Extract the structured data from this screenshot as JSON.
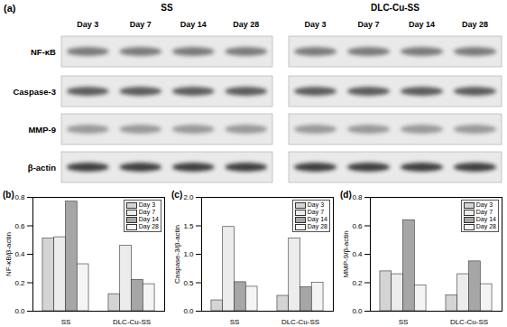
{
  "blot": {
    "panel": "(a)",
    "groups": [
      "SS",
      "DLC-Cu-SS"
    ],
    "days": [
      "Day 3",
      "Day 7",
      "Day 14",
      "Day 28"
    ],
    "rows": [
      "NF-κB",
      "Caspase-3",
      "MMP-9",
      "β-actin"
    ]
  },
  "chart_data": [
    {
      "type": "bar",
      "title": "(b)",
      "y_label": "NF-κB/β-actin",
      "categories": [
        "SS",
        "DLC-Cu-SS"
      ],
      "series": [
        {
          "name": "Day 3",
          "color": "#d4d4d4",
          "values": [
            0.51,
            0.12
          ]
        },
        {
          "name": "Day 7",
          "color": "#ececec",
          "values": [
            0.52,
            0.46
          ]
        },
        {
          "name": "Day 14",
          "color": "#a6a6a6",
          "values": [
            0.77,
            0.22
          ]
        },
        {
          "name": "Day 28",
          "color": "#f4f4f4",
          "values": [
            0.33,
            0.19
          ]
        }
      ],
      "ylim": [
        0,
        0.8
      ],
      "yticks": [
        {
          "value": 0,
          "label": "0.0"
        },
        0.2,
        0.4,
        0.6,
        0.8
      ],
      "legend": "top-right",
      "grid": false
    },
    {
      "type": "bar",
      "title": "(c)",
      "y_label": "Caspase-3/β-actin",
      "categories": [
        "SS",
        "DLC-Cu-SS"
      ],
      "series": [
        {
          "name": "Day 3",
          "color": "#d4d4d4",
          "values": [
            0.19,
            0.27
          ]
        },
        {
          "name": "Day 7",
          "color": "#ececec",
          "values": [
            1.48,
            1.28
          ]
        },
        {
          "name": "Day 14",
          "color": "#a6a6a6",
          "values": [
            0.51,
            0.42
          ]
        },
        {
          "name": "Day 28",
          "color": "#f4f4f4",
          "values": [
            0.43,
            0.5
          ]
        }
      ],
      "ylim": [
        0,
        2
      ],
      "yticks": [
        {
          "value": 0,
          "label": "0.0"
        },
        0.5,
        {
          "value": 1,
          "label": "1.0"
        },
        1.5,
        {
          "value": 2,
          "label": "2.0"
        }
      ],
      "legend": "top-right",
      "grid": false
    },
    {
      "type": "bar",
      "title": "(d)",
      "y_label": "MMP-9/β-actin",
      "categories": [
        "SS",
        "DLC-Cu-SS"
      ],
      "series": [
        {
          "name": "Day 3",
          "color": "#d4d4d4",
          "values": [
            0.28,
            0.11
          ]
        },
        {
          "name": "Day 7",
          "color": "#ececec",
          "values": [
            0.26,
            0.26
          ]
        },
        {
          "name": "Day 14",
          "color": "#a6a6a6",
          "values": [
            0.64,
            0.35
          ]
        },
        {
          "name": "Day 28",
          "color": "#f4f4f4",
          "values": [
            0.18,
            0.19
          ]
        }
      ],
      "ylim": [
        0,
        0.8
      ],
      "yticks": [
        {
          "value": 0,
          "label": "0.0"
        },
        0.2,
        0.4,
        0.6,
        0.8
      ],
      "legend": "top-right",
      "grid": false
    }
  ]
}
